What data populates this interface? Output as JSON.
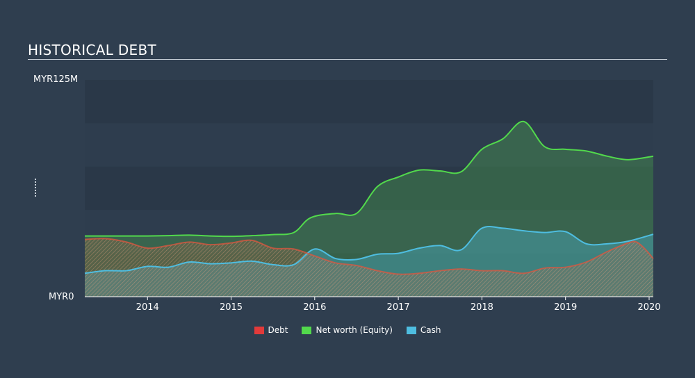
{
  "header": {
    "title": "HISTORICAL DEBT"
  },
  "chart_data": {
    "type": "area",
    "title": "HISTORICAL DEBT",
    "xlabel": "",
    "ylabel": "",
    "y_tick_labels": [
      "MYR0",
      "MYR125M"
    ],
    "ylim": [
      0,
      125
    ],
    "xlim": [
      2013.25,
      2020.05
    ],
    "x_ticks": [
      2014,
      2015,
      2016,
      2017,
      2018,
      2019,
      2020
    ],
    "x_tick_labels": [
      "2014",
      "2015",
      "2016",
      "2017",
      "2018",
      "2019",
      "2020"
    ],
    "grid": true,
    "legend_placement": "bottom",
    "colors": {
      "background": "#2f3e4f",
      "debt": "#e23a3a",
      "equity": "#52d94c",
      "cash": "#4ebde0"
    },
    "series": [
      {
        "name": "Debt",
        "key": "debt",
        "points": [
          [
            2013.25,
            33
          ],
          [
            2013.5,
            33.5
          ],
          [
            2013.75,
            31.5
          ],
          [
            2014.0,
            28
          ],
          [
            2014.25,
            29.5
          ],
          [
            2014.5,
            31.5
          ],
          [
            2014.75,
            30
          ],
          [
            2015.0,
            31
          ],
          [
            2015.25,
            32.5
          ],
          [
            2015.5,
            28
          ],
          [
            2015.75,
            27.5
          ],
          [
            2016.0,
            23.5
          ],
          [
            2016.25,
            19.5
          ],
          [
            2016.5,
            18
          ],
          [
            2016.75,
            15
          ],
          [
            2017.0,
            13
          ],
          [
            2017.25,
            13.5
          ],
          [
            2017.5,
            15
          ],
          [
            2017.75,
            16
          ],
          [
            2018.0,
            15
          ],
          [
            2018.25,
            15
          ],
          [
            2018.5,
            13.5
          ],
          [
            2018.75,
            16.5
          ],
          [
            2019.0,
            17
          ],
          [
            2019.25,
            20
          ],
          [
            2019.5,
            26
          ],
          [
            2019.75,
            31
          ],
          [
            2019.85,
            31.5
          ],
          [
            2019.95,
            27.5
          ],
          [
            2020.05,
            22
          ]
        ]
      },
      {
        "name": "Net worth (Equity)",
        "key": "equity",
        "points": [
          [
            2013.25,
            35
          ],
          [
            2013.5,
            35
          ],
          [
            2013.75,
            35
          ],
          [
            2014.0,
            35
          ],
          [
            2014.25,
            35.2
          ],
          [
            2014.5,
            35.5
          ],
          [
            2014.75,
            35
          ],
          [
            2015.0,
            34.8
          ],
          [
            2015.25,
            35.2
          ],
          [
            2015.5,
            35.8
          ],
          [
            2015.75,
            37
          ],
          [
            2015.95,
            45.5
          ],
          [
            2016.25,
            48
          ],
          [
            2016.5,
            48
          ],
          [
            2016.75,
            63.5
          ],
          [
            2017.0,
            69
          ],
          [
            2017.25,
            73
          ],
          [
            2017.5,
            72.5
          ],
          [
            2017.75,
            72
          ],
          [
            2018.0,
            85
          ],
          [
            2018.25,
            91
          ],
          [
            2018.5,
            101
          ],
          [
            2018.75,
            86.5
          ],
          [
            2019.0,
            85
          ],
          [
            2019.25,
            84
          ],
          [
            2019.5,
            81
          ],
          [
            2019.75,
            79
          ],
          [
            2020.05,
            81
          ]
        ]
      },
      {
        "name": "Cash",
        "key": "cash",
        "points": [
          [
            2013.25,
            13.5
          ],
          [
            2013.5,
            15
          ],
          [
            2013.75,
            15
          ],
          [
            2014.0,
            17.5
          ],
          [
            2014.25,
            17
          ],
          [
            2014.5,
            20
          ],
          [
            2014.75,
            19
          ],
          [
            2015.0,
            19.5
          ],
          [
            2015.25,
            20.5
          ],
          [
            2015.5,
            18.5
          ],
          [
            2015.75,
            18.5
          ],
          [
            2016.0,
            27.5
          ],
          [
            2016.25,
            22
          ],
          [
            2016.5,
            21.5
          ],
          [
            2016.75,
            24.5
          ],
          [
            2017.0,
            25
          ],
          [
            2017.25,
            28
          ],
          [
            2017.5,
            29.5
          ],
          [
            2017.75,
            27
          ],
          [
            2018.0,
            39.5
          ],
          [
            2018.25,
            39.5
          ],
          [
            2018.5,
            38
          ],
          [
            2018.75,
            37
          ],
          [
            2019.0,
            37.5
          ],
          [
            2019.25,
            30.5
          ],
          [
            2019.5,
            30.5
          ],
          [
            2019.75,
            32
          ],
          [
            2020.05,
            36
          ]
        ]
      }
    ]
  },
  "legend": [
    {
      "label": "Debt",
      "color": "#e23a3a"
    },
    {
      "label": "Net worth (Equity)",
      "color": "#52d94c"
    },
    {
      "label": "Cash",
      "color": "#4ebde0"
    }
  ]
}
